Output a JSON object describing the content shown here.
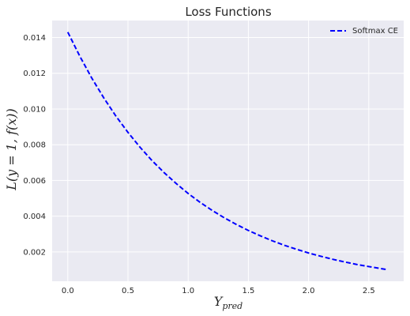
{
  "chart_data": {
    "type": "line",
    "title": "Loss Functions",
    "xlabel": "Y_pred",
    "ylabel": "L(y = 1, f(x))",
    "xlim": [
      -0.13,
      2.79
    ],
    "ylim": [
      0.00036,
      0.01495
    ],
    "xticks": [
      "0.0",
      "0.5",
      "1.0",
      "1.5",
      "2.0",
      "2.5"
    ],
    "yticks": [
      "0.002",
      "0.004",
      "0.006",
      "0.008",
      "0.010",
      "0.012",
      "0.014"
    ],
    "grid": true,
    "legend_position": "top-right",
    "series": [
      {
        "name": "Softmax CE",
        "color": "#0000ff",
        "style": "dashed",
        "x": [
          0.0,
          0.1,
          0.2,
          0.3,
          0.4,
          0.5,
          0.6,
          0.7,
          0.8,
          0.9,
          1.0,
          1.1,
          1.2,
          1.3,
          1.4,
          1.5,
          1.6,
          1.7,
          1.8,
          1.9,
          2.0,
          2.1,
          2.2,
          2.3,
          2.4,
          2.5,
          2.6,
          2.65
        ],
        "y": [
          0.0143,
          0.01295,
          0.01172,
          0.01061,
          0.0096,
          0.00869,
          0.00786,
          0.00711,
          0.00644,
          0.00583,
          0.00527,
          0.00477,
          0.00432,
          0.00391,
          0.00354,
          0.0032,
          0.0029,
          0.00262,
          0.00237,
          0.00215,
          0.00194,
          0.00176,
          0.00159,
          0.00144,
          0.0013,
          0.00118,
          0.00107,
          0.00101
        ]
      }
    ]
  }
}
